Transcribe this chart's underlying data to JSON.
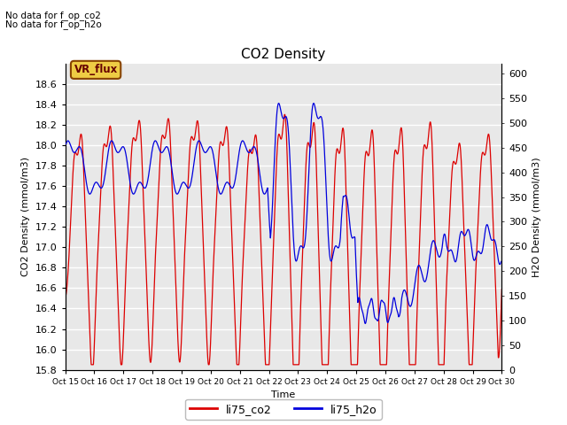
{
  "title": "CO2 Density",
  "xlabel": "Time",
  "ylabel_left": "CO2 Density (mmol/m3)",
  "ylabel_right": "H2O Density (mmol/m3)",
  "annotation1": "No data for f_op_co2",
  "annotation2": "No data for f_op_h2o",
  "vr_flux_label": "VR_flux",
  "legend_co2": "li75_co2",
  "legend_h2o": "li75_h2o",
  "co2_color": "#dd0000",
  "h2o_color": "#0000dd",
  "ylim_left": [
    15.8,
    18.8
  ],
  "ylim_right": [
    0,
    620
  ],
  "fig_bg_color": "#ffffff",
  "plot_bg_color": "#e8e8e8",
  "grid_color": "#ffffff",
  "title_fontsize": 11,
  "label_fontsize": 8,
  "tick_fontsize": 8
}
